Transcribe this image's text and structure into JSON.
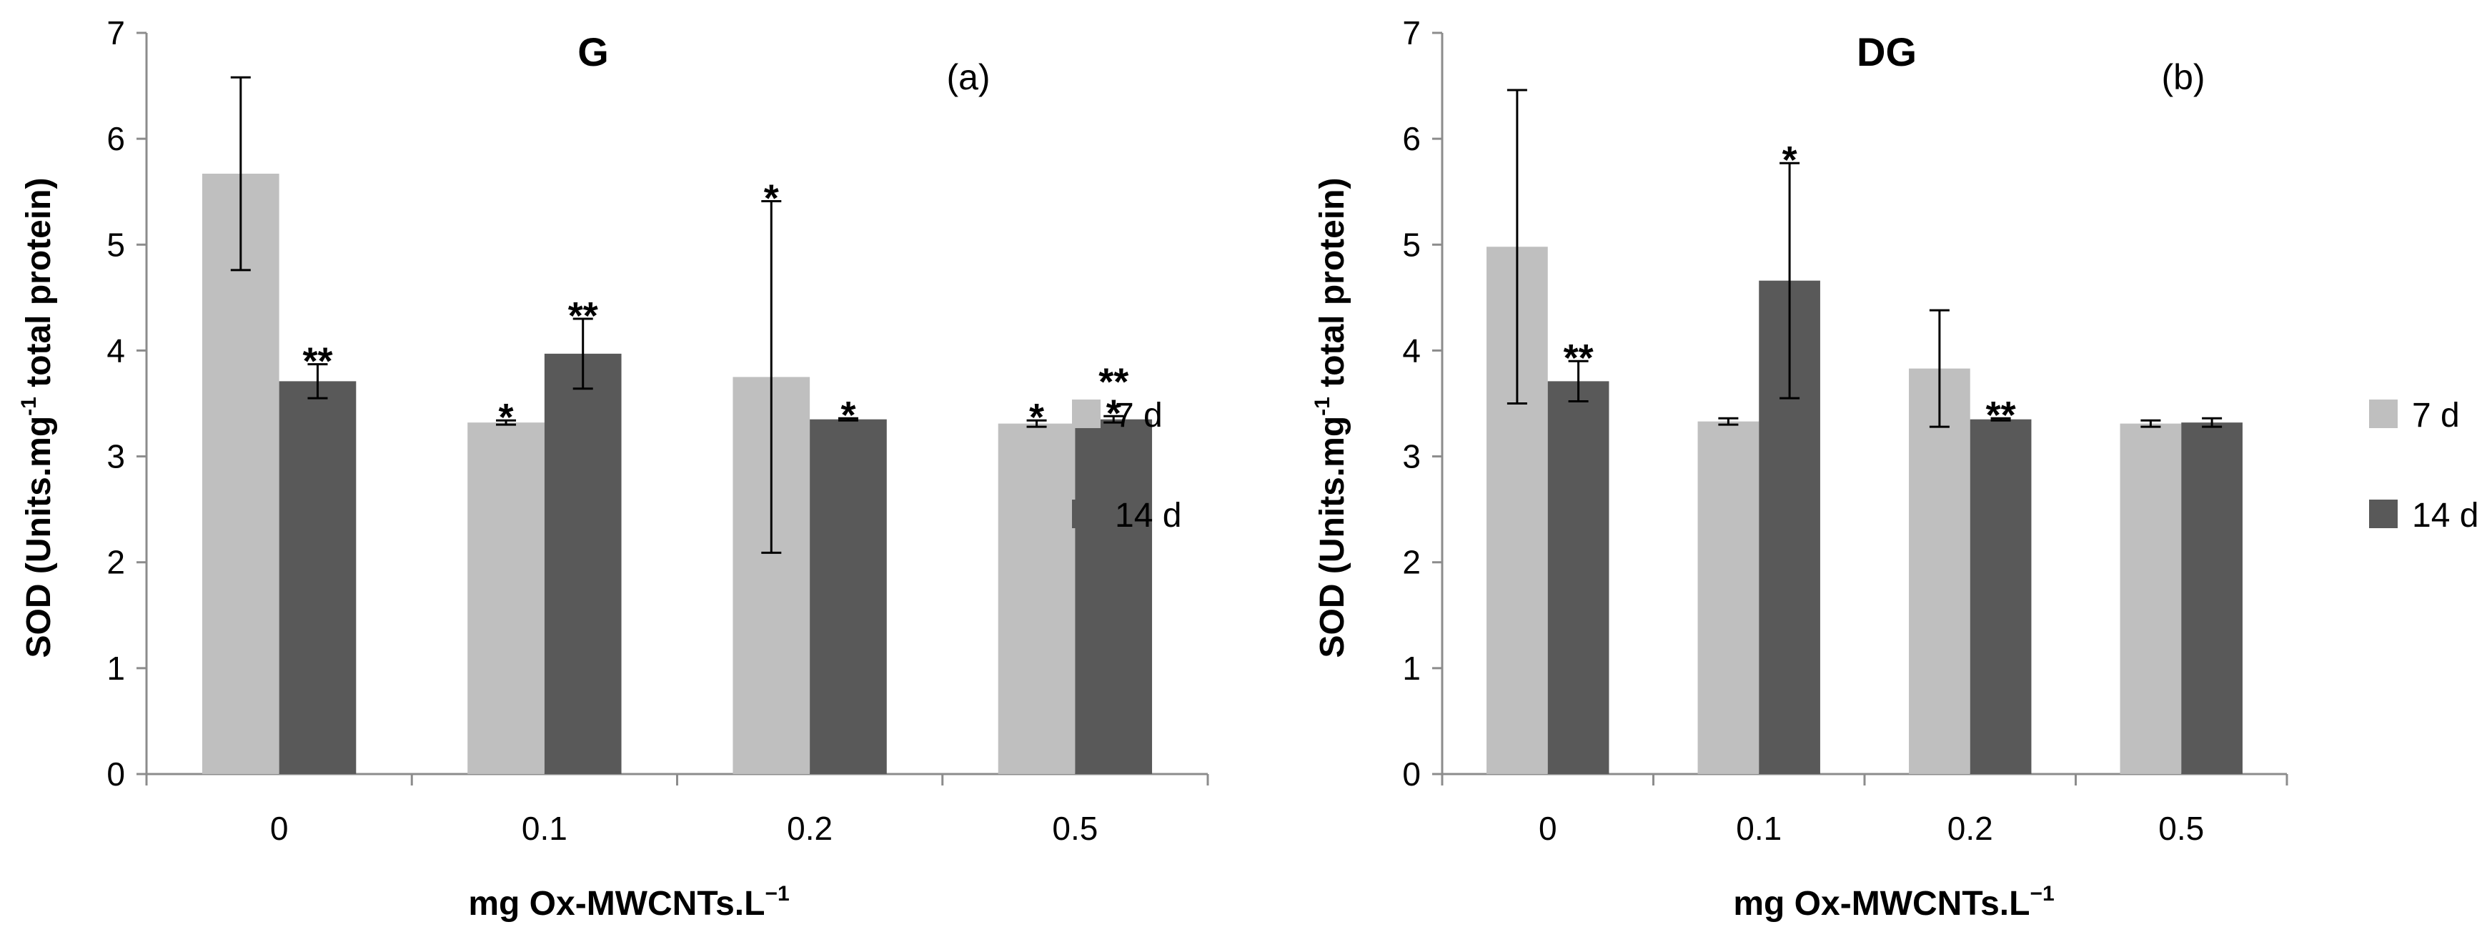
{
  "chart_data": [
    {
      "type": "bar",
      "title": "G",
      "panel_label": "(a)",
      "categories": [
        "0",
        "0.1",
        "0.2",
        "0.5"
      ],
      "ylabel": {
        "prefix": "SOD (Units.mg",
        "sup": "-1",
        "suffix": " total protein)"
      },
      "xlabel": {
        "prefix": "mg Ox-MWCNTs.L",
        "sup": "−1"
      },
      "ylim": [
        0,
        7
      ],
      "yticks": [
        "0",
        "1",
        "2",
        "3",
        "4",
        "5",
        "6",
        "7"
      ],
      "legend_position": "right",
      "series": [
        {
          "name": "7 d",
          "color": "#bfbfbf",
          "values": [
            5.67,
            3.32,
            3.75,
            3.31
          ],
          "errors": [
            0.91,
            0.02,
            1.66,
            0.03
          ],
          "stars": [
            "",
            "*",
            "*",
            "*"
          ]
        },
        {
          "name": "14 d",
          "color": "#595959",
          "values": [
            3.71,
            3.97,
            3.35,
            3.35
          ],
          "errors": [
            0.16,
            0.33,
            0.01,
            0.03
          ],
          "stars": [
            "**",
            "**",
            "*",
            "**\n*"
          ]
        }
      ]
    },
    {
      "type": "bar",
      "title": "DG",
      "panel_label": "(b)",
      "categories": [
        "0",
        "0.1",
        "0.2",
        "0.5"
      ],
      "ylabel": {
        "prefix": "SOD (Units.mg",
        "sup": "-1",
        "suffix": " total protein)"
      },
      "xlabel": {
        "prefix": "mg Ox-MWCNTs.L",
        "sup": "−1"
      },
      "ylim": [
        0,
        7
      ],
      "yticks": [
        "0",
        "1",
        "2",
        "3",
        "4",
        "5",
        "6",
        "7"
      ],
      "legend_position": "right",
      "series": [
        {
          "name": "7 d",
          "color": "#bfbfbf",
          "values": [
            4.98,
            3.33,
            3.83,
            3.31
          ],
          "errors": [
            1.48,
            0.03,
            0.55,
            0.03
          ],
          "stars": [
            "",
            "",
            "",
            ""
          ]
        },
        {
          "name": "14 d",
          "color": "#595959",
          "values": [
            3.71,
            4.66,
            3.35,
            3.32
          ],
          "errors": [
            0.19,
            1.11,
            0.01,
            0.04
          ],
          "stars": [
            "**",
            "*",
            "**",
            ""
          ]
        }
      ]
    }
  ]
}
